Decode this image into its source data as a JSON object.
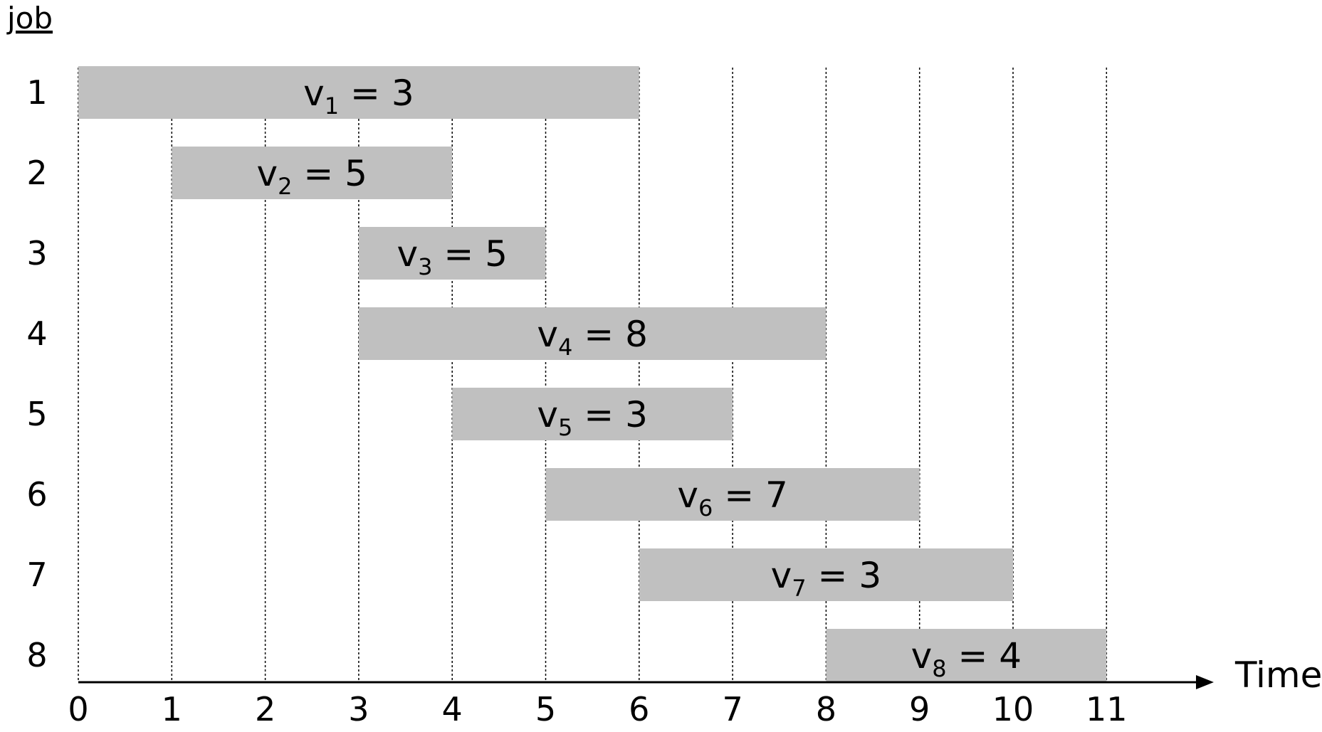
{
  "title": "job",
  "axis_title": "Time",
  "colors": {
    "bar": "#c0c0c0",
    "grid": "#000000",
    "axis": "#000000",
    "background": "#ffffff"
  },
  "chart_data": {
    "type": "gantt",
    "x_ticks": [
      "0",
      "1",
      "2",
      "3",
      "4",
      "5",
      "6",
      "7",
      "8",
      "9",
      "10",
      "11"
    ],
    "x_range": [
      0,
      11
    ],
    "jobs": [
      {
        "row": "1",
        "var": "v",
        "index": "1",
        "value": "3",
        "start": 0,
        "finish": 6
      },
      {
        "row": "2",
        "var": "v",
        "index": "2",
        "value": "5",
        "start": 1,
        "finish": 4
      },
      {
        "row": "3",
        "var": "v",
        "index": "3",
        "value": "5",
        "start": 3,
        "finish": 5
      },
      {
        "row": "4",
        "var": "v",
        "index": "4",
        "value": "8",
        "start": 3,
        "finish": 8
      },
      {
        "row": "5",
        "var": "v",
        "index": "5",
        "value": "3",
        "start": 4,
        "finish": 7
      },
      {
        "row": "6",
        "var": "v",
        "index": "6",
        "value": "7",
        "start": 5,
        "finish": 9
      },
      {
        "row": "7",
        "var": "v",
        "index": "7",
        "value": "3",
        "start": 6,
        "finish": 10
      },
      {
        "row": "8",
        "var": "v",
        "index": "8",
        "value": "4",
        "start": 8,
        "finish": 11
      }
    ]
  }
}
